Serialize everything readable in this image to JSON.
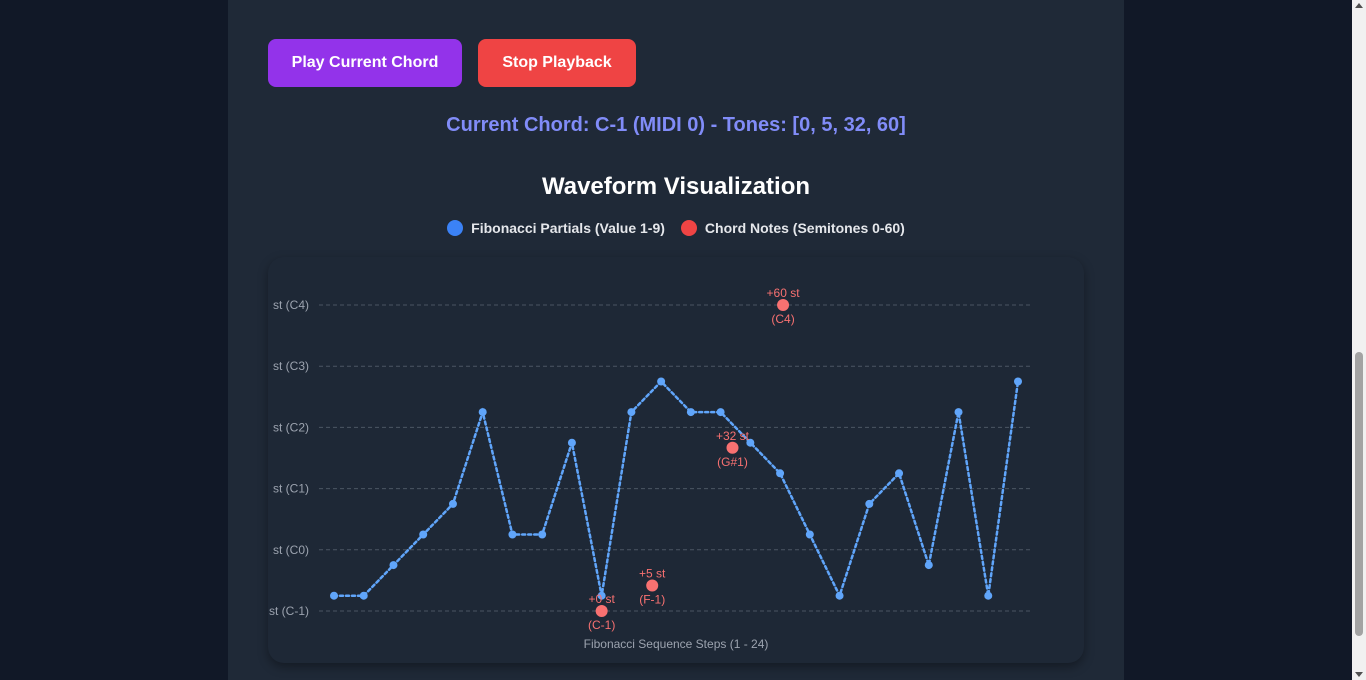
{
  "controls": {
    "play_label": "Play Current Chord",
    "stop_label": "Stop Playback",
    "play_color": "#9333ea",
    "stop_color": "#ef4444"
  },
  "current_chord": {
    "text": "Current Chord: C-1 (MIDI 0) - Tones: [0, 5, 32, 60]",
    "color": "#818cf8"
  },
  "chart_data": {
    "type": "line",
    "title": "Waveform Visualization",
    "xlabel": "Fibonacci Sequence Steps (1 - 24)",
    "ylabel": "",
    "xlim": [
      1,
      24
    ],
    "ylim": [
      0,
      60
    ],
    "y_ticks": [
      {
        "value": 0,
        "label": "st (C-1)"
      },
      {
        "value": 12,
        "label": "st (C0)"
      },
      {
        "value": 24,
        "label": "st (C1)"
      },
      {
        "value": 36,
        "label": "st (C2)"
      },
      {
        "value": 48,
        "label": "st (C3)"
      },
      {
        "value": 60,
        "label": "st (C4)"
      }
    ],
    "grid": true,
    "legend": "top-center",
    "series": [
      {
        "name": "Fibonacci Partials (Value 1-9)",
        "color": "#3b82f6",
        "line_color": "#60a5fa",
        "style": "dotted-line",
        "x": [
          1,
          2,
          3,
          4,
          5,
          6,
          7,
          8,
          9,
          10,
          11,
          12,
          13,
          14,
          15,
          16,
          17,
          18,
          19,
          20,
          21,
          22,
          23,
          24
        ],
        "values": [
          1,
          1,
          2,
          3,
          4,
          7,
          3,
          3,
          6,
          1,
          7,
          8,
          7,
          7,
          6,
          5,
          3,
          1,
          4,
          5,
          2,
          7,
          1,
          8
        ]
      },
      {
        "name": "Chord Notes (Semitones 0-60)",
        "color": "#ef4444",
        "style": "points",
        "points": [
          {
            "x": 10,
            "y": 0,
            "label": "+0 st",
            "note": "(C-1)"
          },
          {
            "x": 11.7,
            "y": 5,
            "label": "+5 st",
            "note": "(F-1)"
          },
          {
            "x": 14.4,
            "y": 32,
            "label": "+32 st",
            "note": "(G#1)"
          },
          {
            "x": 16.1,
            "y": 60,
            "label": "+60 st",
            "note": "(C4)"
          }
        ]
      }
    ]
  }
}
